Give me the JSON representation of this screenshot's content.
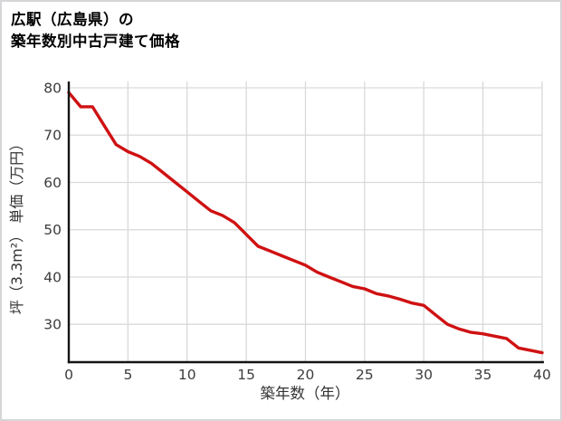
{
  "title": {
    "line1": "広駅（広島県）の",
    "line2": "築年数別中古戸建て価格"
  },
  "chart_data": {
    "type": "line",
    "title": "広駅（広島県）の築年数別中古戸建て価格",
    "xlabel": "築年数（年）",
    "ylabel": "坪（3.3m²） 単価（万円）",
    "x": [
      0,
      1,
      2,
      3,
      4,
      5,
      6,
      7,
      8,
      9,
      10,
      11,
      12,
      13,
      14,
      15,
      16,
      17,
      18,
      19,
      20,
      21,
      22,
      23,
      24,
      25,
      26,
      27,
      28,
      29,
      30,
      31,
      32,
      33,
      34,
      35,
      36,
      37,
      38,
      39,
      40
    ],
    "values": [
      79,
      76,
      76,
      72,
      68,
      66.5,
      65.5,
      64,
      62,
      60,
      58,
      56,
      54,
      53,
      51.5,
      49,
      46.5,
      45.5,
      44.5,
      43.5,
      42.5,
      41,
      40,
      39,
      38,
      37.5,
      36.5,
      36,
      35.3,
      34.5,
      34,
      32,
      30,
      29,
      28.3,
      28,
      27.5,
      27,
      25,
      24.5,
      24
    ],
    "xlim": [
      0,
      40
    ],
    "ylim": [
      22,
      80
    ],
    "xticks": [
      0,
      5,
      10,
      15,
      20,
      25,
      30,
      35,
      40
    ],
    "yticks": [
      30,
      40,
      50,
      60,
      70,
      80
    ],
    "grid": true,
    "legend": false,
    "line_color": "#cf1112",
    "grid_color": "#d9d9d9",
    "axis_color": "#141414",
    "tick_color": "#3c3c3c",
    "label_color": "#333333"
  }
}
